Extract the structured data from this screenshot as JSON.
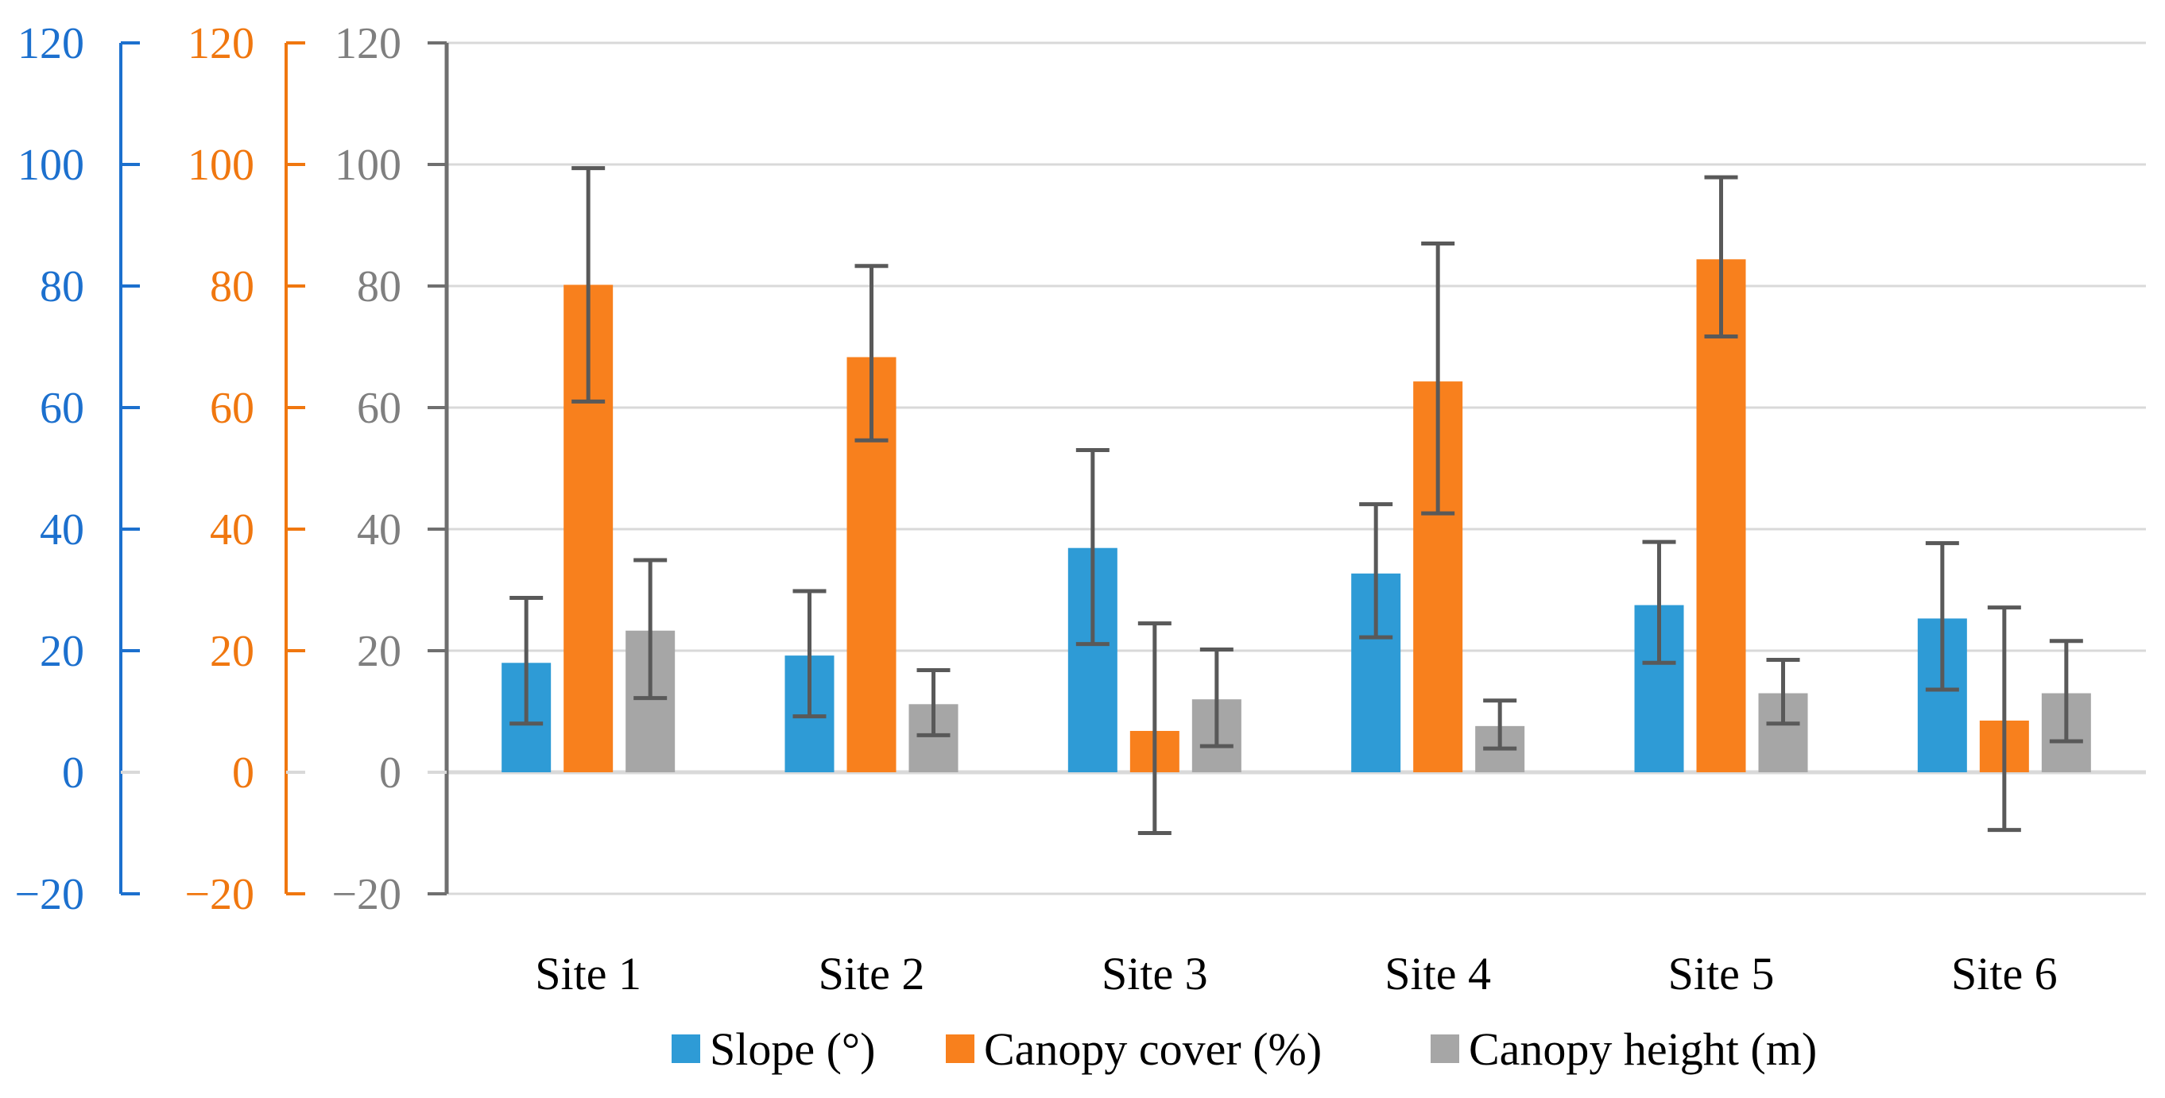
{
  "figure": {
    "background": "#FFFFFF",
    "gridline_color": "#D9D9D9",
    "zero_line_color": "#D9D9D9",
    "error_bar_color": "#595959",
    "plot_border_color": "#6F6F6F"
  },
  "chart_data": {
    "type": "bar",
    "title": "",
    "xlabel": "",
    "ylabel": "",
    "grid": true,
    "legend_position": "bottom",
    "ylim": [
      -20,
      120
    ],
    "tick_step": 20,
    "categories": [
      "Site 1",
      "Site 2",
      "Site 3",
      "Site 4",
      "Site 5",
      "Site 6"
    ],
    "y_tick_labels": [
      "120",
      "100",
      "80",
      "60",
      "40",
      "20",
      "0",
      "−20"
    ],
    "y_tick_values": [
      120,
      100,
      80,
      60,
      40,
      20,
      0,
      -20
    ],
    "y_axes": [
      {
        "id": "slope-axis",
        "line_color": "#1C70CE",
        "text_color": "#1C70CE"
      },
      {
        "id": "canopy-cover-axis",
        "line_color": "#F0770F",
        "text_color": "#F0770F"
      },
      {
        "id": "canopy-height-axis",
        "line_color": "#6F6F6F",
        "text_color": "#7F7F7F"
      }
    ],
    "series": [
      {
        "name": "Slope (°)",
        "color": "#2E9BD6",
        "values": [
          18.0,
          19.2,
          36.9,
          32.7,
          27.5,
          25.3
        ],
        "err_low": [
          8.0,
          9.2,
          21.1,
          22.2,
          18.0,
          13.6
        ],
        "err_high": [
          28.7,
          29.8,
          53.0,
          44.1,
          37.9,
          37.7
        ]
      },
      {
        "name": "Canopy cover  (%)",
        "color": "#F8801D",
        "values": [
          80.2,
          68.3,
          6.8,
          64.3,
          84.4,
          8.5
        ],
        "err_low": [
          61.0,
          54.6,
          -10.0,
          42.6,
          71.7,
          -9.5
        ],
        "err_high": [
          99.4,
          83.3,
          24.5,
          87.0,
          97.9,
          27.1
        ]
      },
      {
        "name": "Canopy height (m)",
        "color": "#A6A6A6",
        "values": [
          23.3,
          11.2,
          12.0,
          7.6,
          13.0,
          13.0
        ],
        "err_low": [
          12.2,
          6.1,
          4.3,
          3.9,
          8.0,
          5.1
        ],
        "err_high": [
          34.9,
          16.8,
          20.2,
          11.8,
          18.5,
          21.6
        ]
      }
    ]
  }
}
